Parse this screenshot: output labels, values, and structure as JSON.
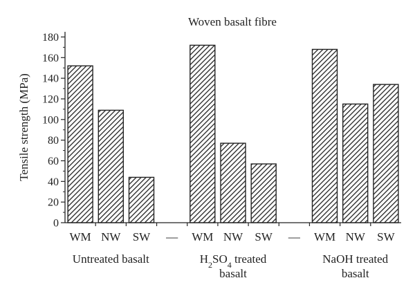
{
  "chart_data": {
    "type": "bar",
    "title": "Woven basalt fibre",
    "ylabel": "Tensile strength (MPa)",
    "xlabel": "",
    "ylim": [
      0,
      185
    ],
    "yticks": [
      0,
      20,
      40,
      60,
      80,
      100,
      120,
      140,
      160,
      180
    ],
    "grid": false,
    "categories": [
      "WM",
      "NW",
      "SW",
      "—",
      "WM",
      "NW",
      "SW",
      "—",
      "WM",
      "NW",
      "SW"
    ],
    "values": [
      152,
      109,
      44,
      null,
      172,
      77,
      57,
      null,
      168,
      115,
      134
    ],
    "groups": [
      {
        "lines": [
          "Untreated basalt"
        ],
        "indices": [
          0,
          1,
          2
        ]
      },
      {
        "lines": [
          "H2SO4 treated",
          "basalt"
        ],
        "indices": [
          4,
          5,
          6
        ]
      },
      {
        "lines": [
          "NaOH treated",
          "basalt"
        ],
        "indices": [
          8,
          9,
          10
        ]
      }
    ],
    "bar_pattern": "diagonal-hatch",
    "bar_color": "#222222"
  }
}
